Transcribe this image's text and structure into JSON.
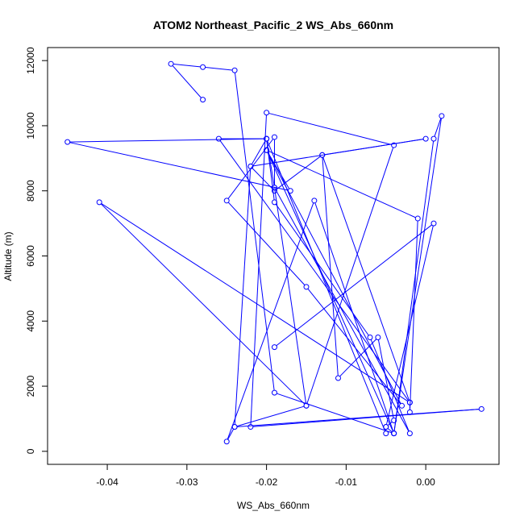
{
  "chart_data": {
    "type": "line",
    "title": "ATOM2 Northeast_Pacific_2 WS_Abs_660nm",
    "xlabel": "WS_Abs_660nm",
    "ylabel": "Altitude (m)",
    "xlim": [
      -0.0475,
      0.0092
    ],
    "ylim": [
      -400,
      12400
    ],
    "x_ticks": [
      -0.04,
      -0.03,
      -0.02,
      -0.01,
      0.0
    ],
    "x_tick_labels": [
      "-0.04",
      "-0.03",
      "-0.02",
      "-0.01",
      "0.00"
    ],
    "y_ticks": [
      0,
      2000,
      4000,
      6000,
      8000,
      10000,
      12000
    ],
    "y_tick_labels": [
      "0",
      "2000",
      "4000",
      "6000",
      "8000",
      "10000",
      "12000"
    ],
    "color": "#0000ff",
    "marker": "open-circle",
    "grid": false,
    "series": [
      {
        "segments": [
          {
            "x": [
              -0.028,
              -0.032,
              -0.028,
              -0.024,
              -0.019,
              -0.004,
              -0.005,
              -0.004,
              -0.006,
              -0.011,
              -0.013,
              -0.019,
              -0.022,
              -0.024,
              0.007,
              -0.022,
              -0.02,
              -0.004,
              -0.015,
              -0.041,
              -0.002,
              -0.026,
              -0.02,
              -0.045,
              -0.017,
              -0.02,
              -0.003,
              -0.015,
              -0.025,
              -0.019,
              -0.019,
              -0.002,
              -0.007,
              -0.019,
              -0.02,
              -0.022,
              0.0,
              -0.013,
              -0.002,
              -0.002,
              -0.001,
              -0.02,
              -0.004,
              0.001,
              0.002,
              -0.004,
              -0.014,
              -0.025,
              -0.024,
              -0.015,
              -0.019,
              -0.02,
              -0.005,
              -0.005,
              0.001,
              -0.019
            ],
            "y": [
              10800,
              11900,
              11800,
              11700,
              1800,
              550,
              750,
              950,
              3500,
              2250,
              9100,
              8000,
              8750,
              750,
              1300,
              750,
              10400,
              9400,
              1400,
              7650,
              1500,
              9600,
              9600,
              9500,
              8000,
              9250,
              1400,
              5050,
              7700,
              9650,
              8100,
              550,
              3500,
              7650,
              9600,
              8750,
              9600,
              9100,
              1500,
              1200,
              7150,
              9250,
              550,
              9600,
              10300,
              550,
              7700,
              300,
              750,
              1400,
              8100,
              9600,
              550,
              750,
              7000,
              3200
            ]
          }
        ]
      }
    ]
  }
}
